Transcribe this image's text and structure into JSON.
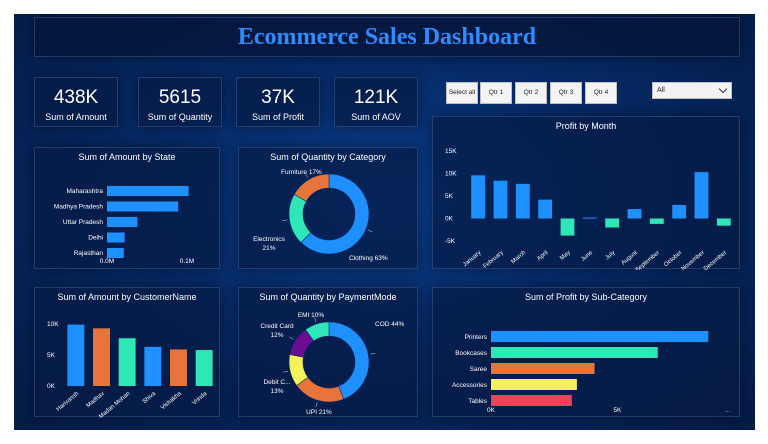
{
  "title": "Ecommerce Sales Dashboard",
  "kpis": [
    {
      "value": "438K",
      "label": "Sum of Amount"
    },
    {
      "value": "5615",
      "label": "Sum of Quantity"
    },
    {
      "value": "37K",
      "label": "Sum of Profit"
    },
    {
      "value": "121K",
      "label": "Sum of AOV"
    }
  ],
  "slicer": {
    "buttons": [
      "Select all",
      "Qtr 1",
      "Qtr 2",
      "Qtr 3",
      "Qtr 4"
    ],
    "dropdown_value": "All"
  },
  "colors": {
    "blue": "#1e90ff",
    "orange": "#e8743b",
    "teal": "#2ee6b6",
    "purple": "#6a0d91",
    "yellow": "#f4f25b",
    "red": "#e8455b",
    "title": "#2f8cff"
  },
  "chart_data": [
    {
      "id": "amount_by_state",
      "type": "bar",
      "orientation": "horizontal",
      "title": "Sum of Amount by State",
      "categories": [
        "Maharashtra",
        "Madhya Pradesh",
        "Uttar Pradesh",
        "Delhi",
        "Rajasthan"
      ],
      "values": [
        102000,
        89000,
        38000,
        22000,
        21000
      ],
      "xlim": [
        0,
        120000
      ],
      "xticks": [
        "0.0M",
        "0.1M"
      ]
    },
    {
      "id": "quantity_by_category",
      "type": "pie",
      "donut": true,
      "title": "Sum of Quantity by Category",
      "categories": [
        "Clothing",
        "Electronics",
        "Furniture"
      ],
      "values": [
        63,
        21,
        17
      ],
      "labels": [
        "Clothing 63%",
        "Electronics 21%",
        "Furniture 17%"
      ],
      "colors": [
        "#1e90ff",
        "#2ee6b6",
        "#e8743b"
      ]
    },
    {
      "id": "profit_by_month",
      "type": "bar",
      "title": "Profit by Month",
      "categories": [
        "January",
        "February",
        "March",
        "April",
        "May",
        "June",
        "July",
        "August",
        "September",
        "October",
        "November",
        "December"
      ],
      "values": [
        9600,
        8400,
        7700,
        4200,
        -3800,
        200,
        -2000,
        2100,
        -1200,
        3000,
        10300,
        -1600
      ],
      "ylim": [
        -5000,
        15000
      ],
      "yticks": [
        "-5K",
        "0K",
        "5K",
        "10K",
        "15K"
      ]
    },
    {
      "id": "amount_by_customer",
      "type": "bar",
      "title": "Sum of Amount by CustomerName",
      "categories": [
        "Harivansh",
        "Madhav",
        "Madan Mohan",
        "Shiva",
        "Vishakha",
        "Vrinda"
      ],
      "values": [
        9900,
        9300,
        7700,
        6300,
        5900,
        5800
      ],
      "colors": [
        "#1e90ff",
        "#e8743b",
        "#2ee6b6",
        "#1e90ff",
        "#e8743b",
        "#2ee6b6"
      ],
      "ylim": [
        0,
        10000
      ],
      "yticks": [
        "0K",
        "5K",
        "10K"
      ]
    },
    {
      "id": "quantity_by_paymentmode",
      "type": "pie",
      "donut": true,
      "title": "Sum of Quantity by PaymentMode",
      "categories": [
        "COD",
        "UPI",
        "Debit Card",
        "Credit Card",
        "EMI"
      ],
      "values": [
        44,
        21,
        13,
        12,
        10
      ],
      "labels": [
        "COD 44%",
        "UPI 21%",
        "Debit C... 13%",
        "Credit Card 12%",
        "EMI 10%"
      ],
      "colors": [
        "#1e90ff",
        "#e8743b",
        "#f4f25b",
        "#6a0d91",
        "#2ee6b6"
      ]
    },
    {
      "id": "profit_by_subcategory",
      "type": "bar",
      "orientation": "horizontal",
      "title": "Sum of Profit by Sub-Category",
      "categories": [
        "Printers",
        "Bookcases",
        "Saree",
        "Accessories",
        "Tables"
      ],
      "values": [
        8600,
        6600,
        4100,
        3400,
        3200
      ],
      "colors": [
        "#1e90ff",
        "#2ee6b6",
        "#e8743b",
        "#f4f25b",
        "#e8455b"
      ],
      "xlim": [
        0,
        9500
      ],
      "xticks": [
        "0K",
        "5K"
      ]
    }
  ]
}
